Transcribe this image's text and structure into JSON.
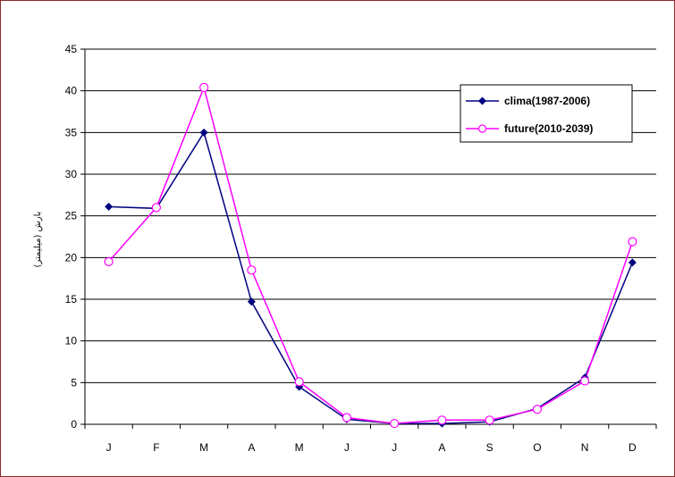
{
  "chart_data": {
    "type": "line",
    "title": "",
    "xlabel": "",
    "ylabel": "بارش (میلیمتر)",
    "categories": [
      "J",
      "F",
      "M",
      "A",
      "M",
      "J",
      "J",
      "A",
      "S",
      "O",
      "N",
      "D"
    ],
    "ylim": [
      0,
      45
    ],
    "yticks": [
      0,
      5,
      10,
      15,
      20,
      25,
      30,
      35,
      40,
      45
    ],
    "grid": true,
    "legend_position": "top-right",
    "series": [
      {
        "name": "clima(1987-2006)",
        "color": "#000080",
        "marker": "filled-diamond",
        "values": [
          26.1,
          25.9,
          35.0,
          14.7,
          4.5,
          0.6,
          0.1,
          0.1,
          0.3,
          1.9,
          5.6,
          19.4
        ]
      },
      {
        "name": "future(2010-2039)",
        "color": "#ff00ff",
        "marker": "open-circle",
        "values": [
          19.5,
          26.0,
          40.4,
          18.5,
          5.1,
          0.8,
          0.1,
          0.5,
          0.5,
          1.8,
          5.2,
          21.9
        ]
      }
    ]
  }
}
